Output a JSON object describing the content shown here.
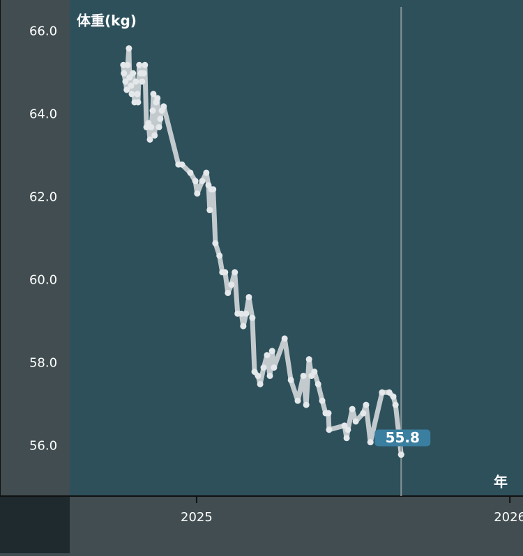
{
  "chart_data": {
    "type": "line",
    "y_label": "体重(kg)",
    "x_label": "年",
    "color": "#c3cacd",
    "xlim": [
      2024.595,
      2026.042
    ],
    "xticks": [
      2025,
      2026
    ],
    "ylim": [
      54.8,
      66.6
    ],
    "yticks": [
      {
        "value": 56,
        "label": "56.0"
      },
      {
        "value": 58,
        "label": "58.0"
      },
      {
        "value": 60,
        "label": "60.0"
      },
      {
        "value": 62,
        "label": "62.0"
      },
      {
        "value": 64,
        "label": "64.0"
      },
      {
        "value": 66,
        "label": "66.0"
      }
    ],
    "x": [
      2024.766,
      2024.768,
      2024.773,
      2024.777,
      2024.78,
      2024.784,
      2024.786,
      2024.791,
      2024.793,
      2024.797,
      2024.802,
      2024.806,
      2024.811,
      2024.813,
      2024.817,
      2024.822,
      2024.826,
      2024.831,
      2024.835,
      2024.84,
      2024.846,
      2024.851,
      2024.855,
      2024.86,
      2024.862,
      2024.866,
      2024.871,
      2024.875,
      2024.88,
      2024.884,
      2024.889,
      2024.895,
      2024.942,
      2024.953,
      2024.98,
      2024.996,
      2025.002,
      2025.018,
      2025.031,
      2025.038,
      2025.042,
      2025.047,
      2025.053,
      2025.06,
      2025.073,
      2025.082,
      2025.091,
      2025.1,
      2025.111,
      2025.122,
      2025.131,
      2025.143,
      2025.149,
      2025.158,
      2025.167,
      2025.178,
      2025.185,
      2025.196,
      2025.203,
      2025.214,
      2025.225,
      2025.234,
      2025.241,
      2025.247,
      2025.281,
      2025.301,
      2025.323,
      2025.341,
      2025.35,
      2025.359,
      2025.367,
      2025.376,
      2025.388,
      2025.401,
      2025.412,
      2025.421,
      2025.423,
      2025.472,
      2025.479,
      2025.483,
      2025.497,
      2025.508,
      2025.532,
      2025.541,
      2025.555,
      2025.592,
      2025.615,
      2025.628,
      2025.635,
      2025.653
    ],
    "values": [
      65.2,
      65.0,
      64.8,
      64.6,
      65.2,
      65.6,
      64.9,
      64.7,
      64.5,
      65.0,
      64.3,
      64.8,
      64.5,
      64.3,
      65.2,
      65.0,
      64.8,
      65.0,
      65.2,
      63.7,
      63.8,
      63.4,
      63.7,
      64.1,
      64.5,
      63.5,
      64.3,
      64.4,
      63.7,
      63.9,
      64.1,
      64.2,
      62.8,
      62.8,
      62.6,
      62.4,
      62.1,
      62.4,
      62.6,
      62.3,
      61.7,
      62.2,
      62.2,
      60.9,
      60.6,
      60.2,
      60.2,
      59.7,
      59.9,
      60.2,
      59.2,
      59.2,
      58.9,
      59.2,
      59.6,
      59.1,
      57.8,
      57.7,
      57.5,
      57.9,
      58.2,
      57.7,
      58.3,
      57.9,
      58.6,
      57.6,
      57.1,
      57.7,
      57.0,
      58.1,
      57.7,
      57.8,
      57.5,
      57.1,
      56.8,
      56.8,
      56.4,
      56.5,
      56.2,
      56.4,
      56.9,
      56.6,
      56.8,
      57.0,
      56.1,
      57.3,
      57.3,
      57.2,
      57.0,
      55.8
    ],
    "selected": {
      "x": 2025.653,
      "value": 55.8
    }
  }
}
